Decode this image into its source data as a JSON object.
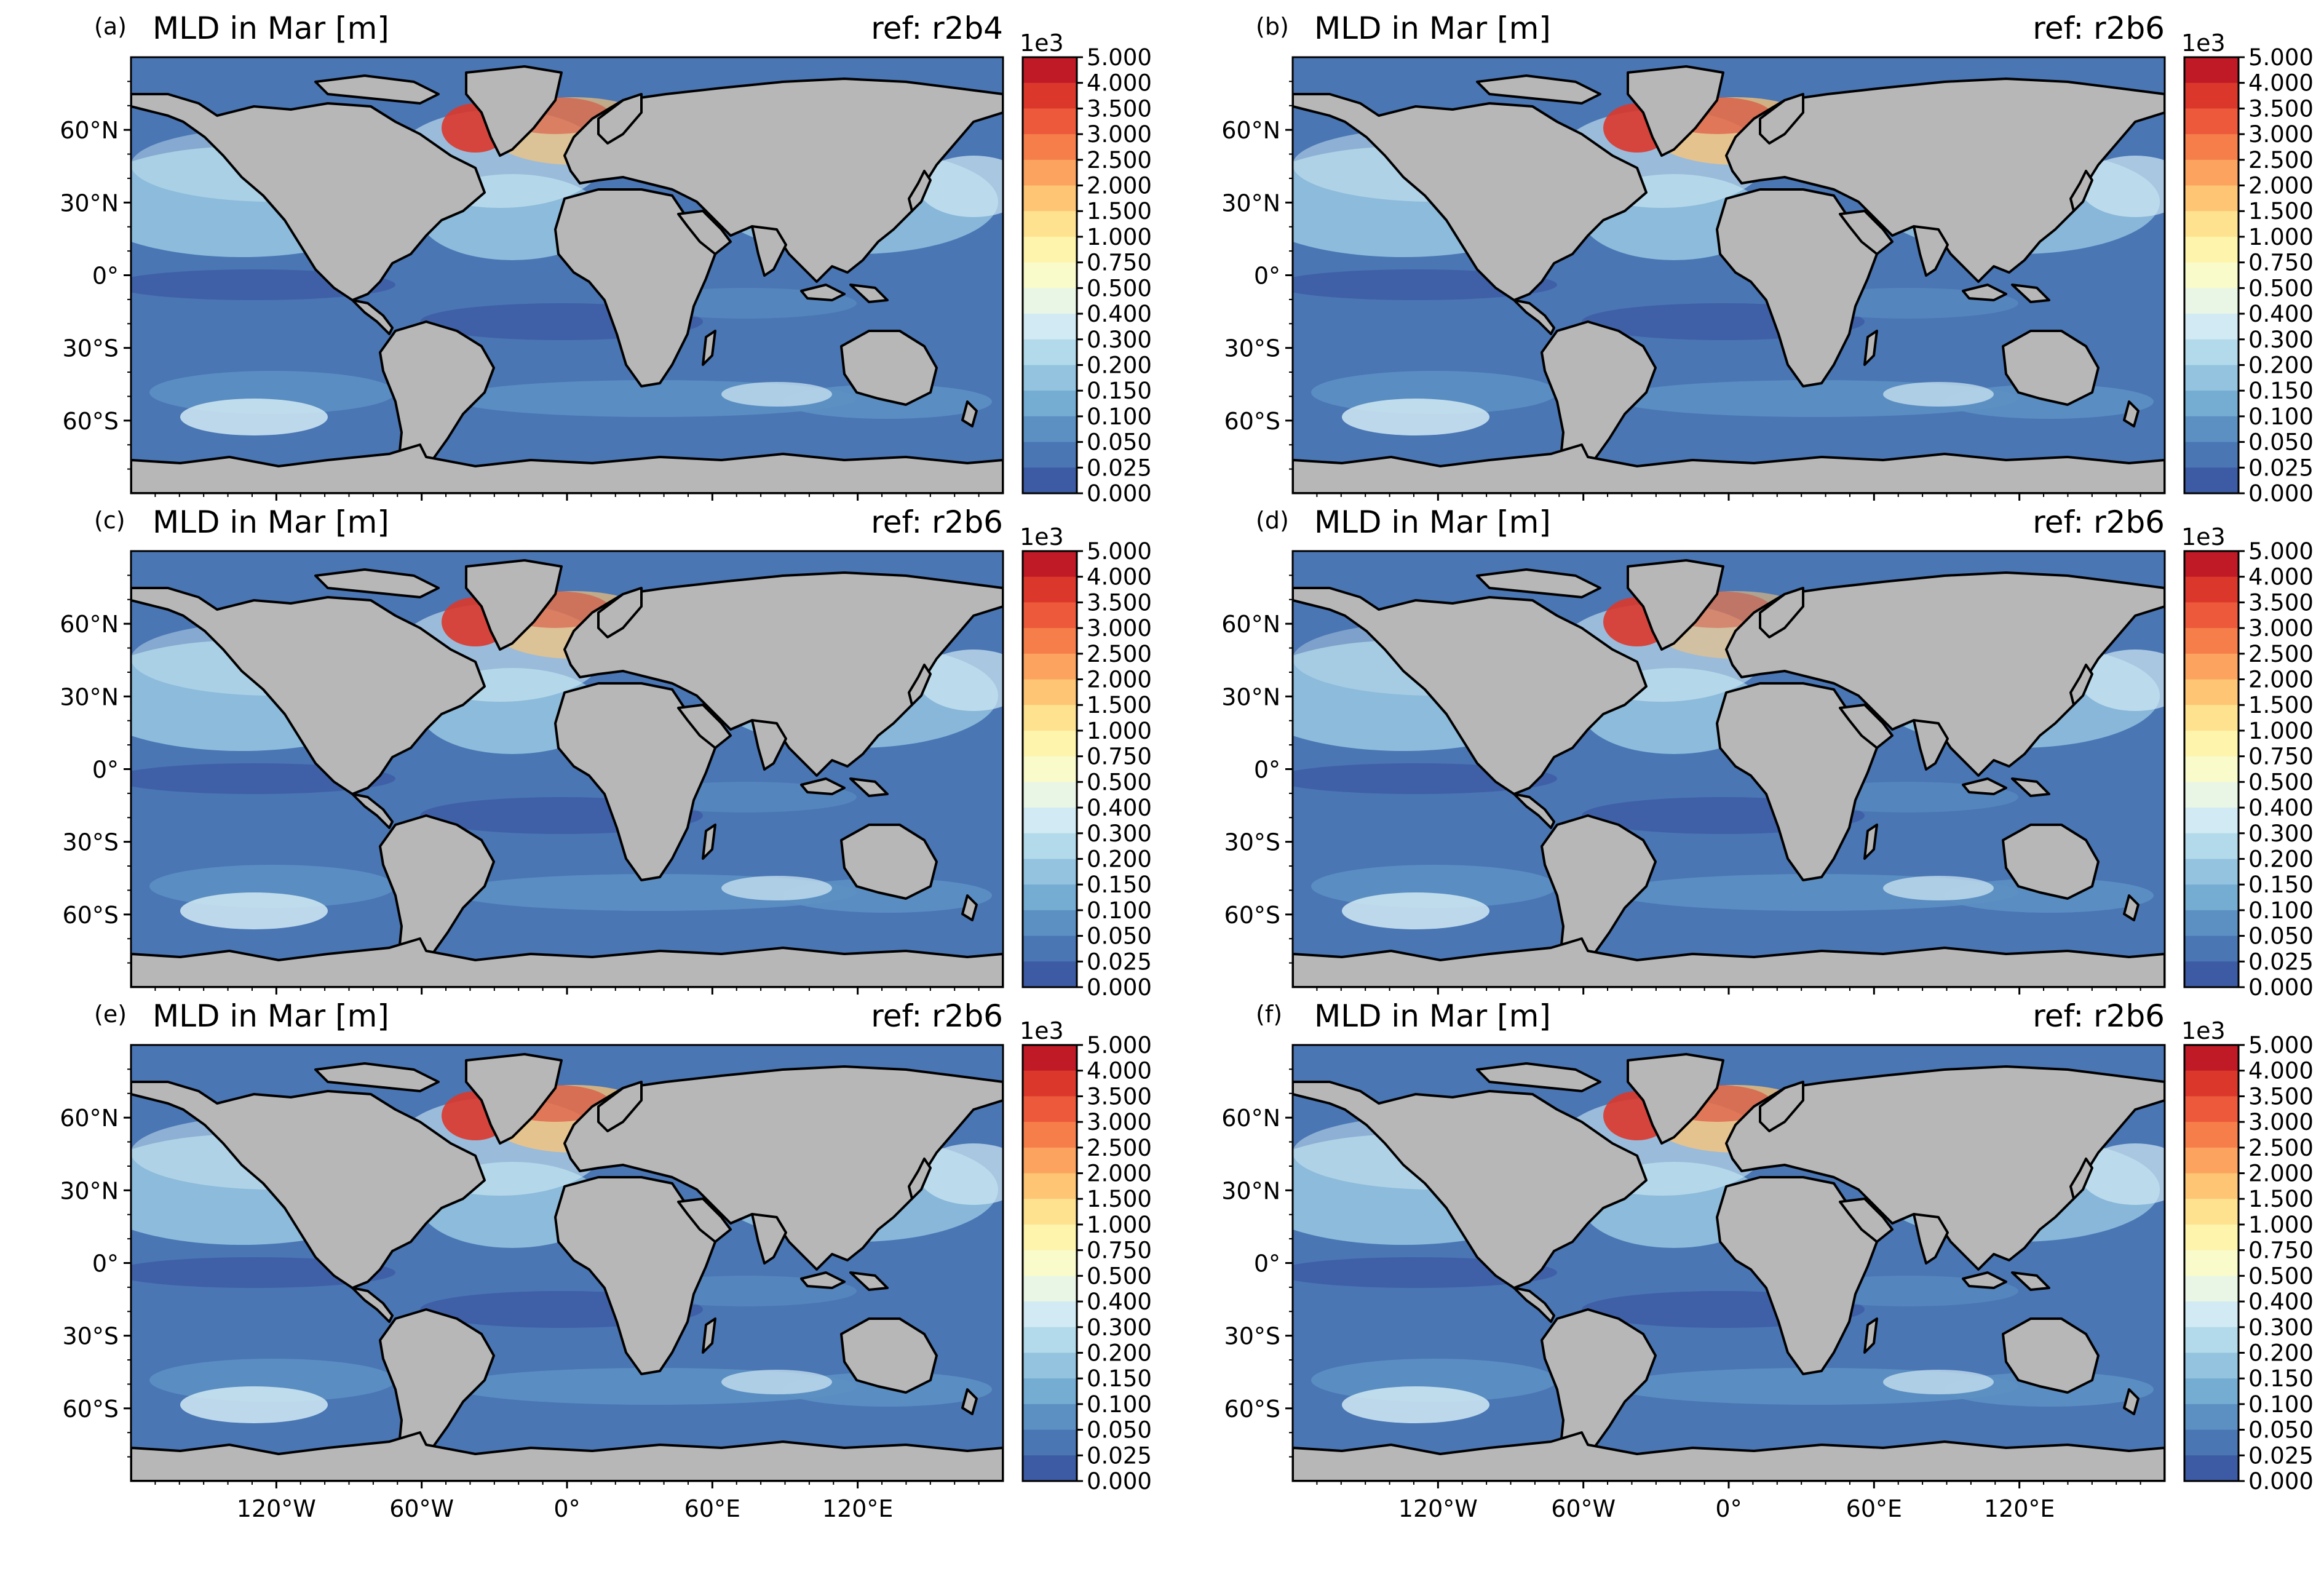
{
  "figure": {
    "type": "heatmap",
    "y_ticks": [
      "60°N",
      "30°N",
      "0°",
      "30°S",
      "60°S"
    ],
    "x_ticks": [
      "120°W",
      "60°W",
      "0°",
      "60°E",
      "120°E"
    ],
    "colorbar": {
      "offset_label": "1e3",
      "ticks": [
        "5.000",
        "4.000",
        "3.500",
        "3.000",
        "2.500",
        "2.000",
        "1.500",
        "1.000",
        "0.750",
        "0.500",
        "0.400",
        "0.300",
        "0.200",
        "0.150",
        "0.100",
        "0.050",
        "0.025",
        "0.000"
      ],
      "colors": [
        "#c01a27",
        "#db382b",
        "#ec5a3b",
        "#f67e4b",
        "#fba35f",
        "#fdc574",
        "#fee28f",
        "#fff4ab",
        "#f9fbcb",
        "#e9f6e6",
        "#d1eaf3",
        "#b3daeb",
        "#93c3df",
        "#75acd2",
        "#5c90c2",
        "#4a76b4",
        "#3c5ba4"
      ]
    },
    "colors": {
      "land": "#b7b7b7",
      "ocean_base": "#4a76b4",
      "deep_ocean": "#3c5ba4",
      "mid_ocean": "#5c90c2",
      "light_ocean": "#93c3df",
      "pale_ocean": "#d1eaf3",
      "warm": "#fdc574",
      "hot": "#db382b"
    }
  },
  "chart_data": [
    {
      "panel_label": "(a)",
      "title": "MLD in Mar [m]",
      "ref": "ref: r2b4",
      "type": "heatmap",
      "variable": "MLD",
      "units": "m",
      "colorbar_range": [
        0,
        5000
      ],
      "north_atlantic_max": 3500,
      "show_x_ticks": false
    },
    {
      "panel_label": "(b)",
      "title": "MLD in Mar [m]",
      "ref": "ref: r2b6",
      "type": "heatmap",
      "variable": "MLD",
      "units": "m",
      "colorbar_range": [
        0,
        5000
      ],
      "north_atlantic_max": 4000,
      "show_x_ticks": false
    },
    {
      "panel_label": "(c)",
      "title": "MLD in Mar [m]",
      "ref": "ref: r2b6",
      "type": "heatmap",
      "variable": "MLD",
      "units": "m",
      "colorbar_range": [
        0,
        5000
      ],
      "north_atlantic_max": 3500,
      "show_x_ticks": false
    },
    {
      "panel_label": "(d)",
      "title": "MLD in Mar [m]",
      "ref": "ref: r2b6",
      "type": "heatmap",
      "variable": "MLD",
      "units": "m",
      "colorbar_range": [
        0,
        5000
      ],
      "north_atlantic_max": 3000,
      "show_x_ticks": false
    },
    {
      "panel_label": "(e)",
      "title": "MLD in Mar [m]",
      "ref": "ref: r2b6",
      "type": "heatmap",
      "variable": "MLD",
      "units": "m",
      "colorbar_range": [
        0,
        5000
      ],
      "north_atlantic_max": 4000,
      "show_x_ticks": true
    },
    {
      "panel_label": "(f)",
      "title": "MLD in Mar [m]",
      "ref": "ref: r2b6",
      "type": "heatmap",
      "variable": "MLD",
      "units": "m",
      "colorbar_range": [
        0,
        5000
      ],
      "north_atlantic_max": 4000,
      "show_x_ticks": true
    }
  ]
}
